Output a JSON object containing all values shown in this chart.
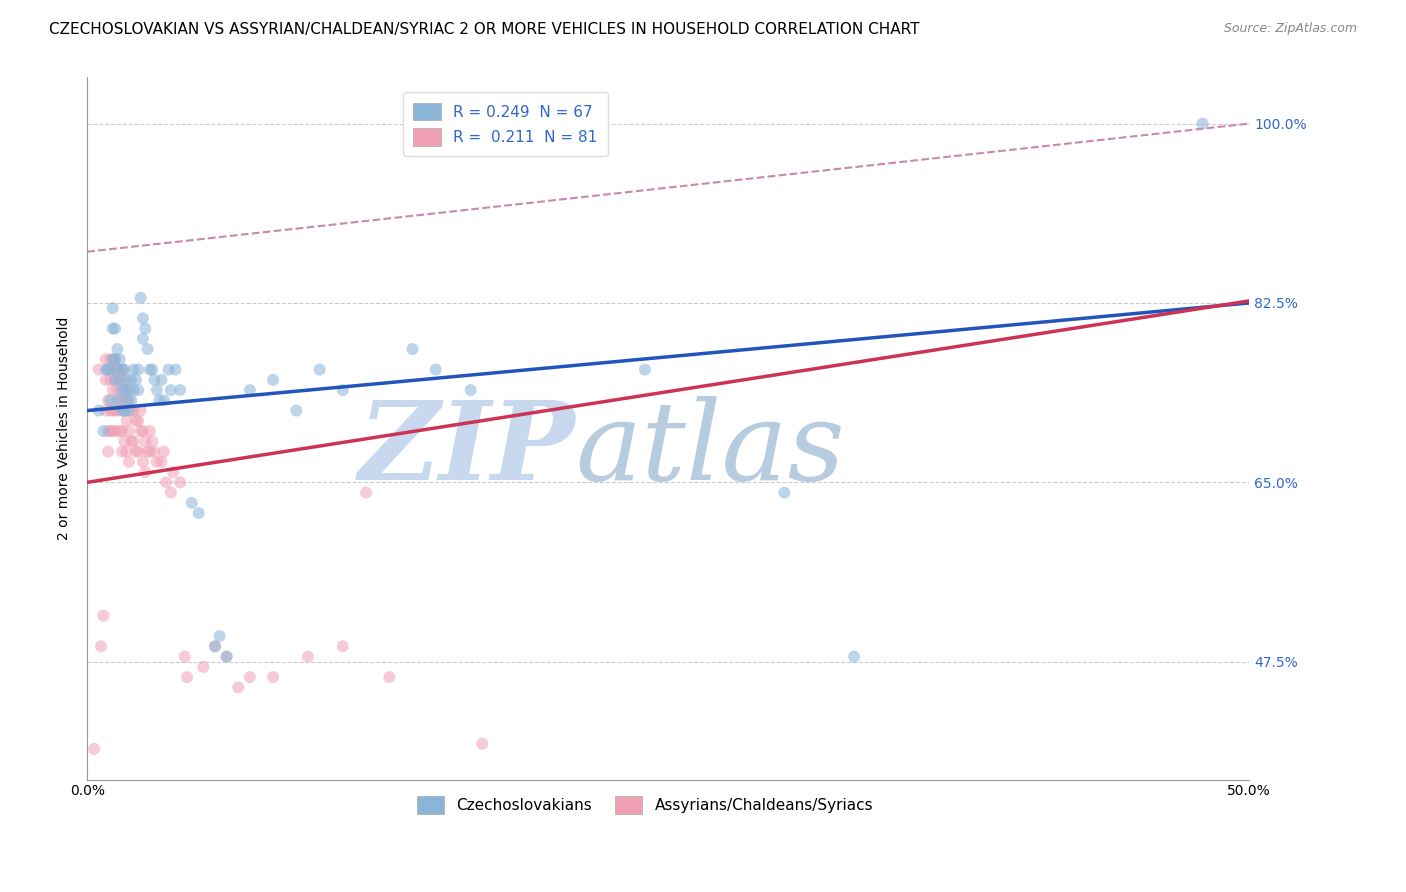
{
  "title": "CZECHOSLOVAKIAN VS ASSYRIAN/CHALDEAN/SYRIAC 2 OR MORE VEHICLES IN HOUSEHOLD CORRELATION CHART",
  "source": "Source: ZipAtlas.com",
  "ylabel": "2 or more Vehicles in Household",
  "ytick_labels": [
    "47.5%",
    "65.0%",
    "82.5%",
    "100.0%"
  ],
  "ytick_values": [
    0.475,
    0.65,
    0.825,
    1.0
  ],
  "xlim": [
    0.0,
    0.5
  ],
  "ylim": [
    0.36,
    1.045
  ],
  "watermark_zip": "ZIP",
  "watermark_atlas": "atlas",
  "legend_entry1": "R = 0.249  N = 67",
  "legend_entry2": "R =  0.211  N = 81",
  "legend_label1": "Czechoslovakians",
  "legend_label2": "Assyrians/Chaldeans/Syriacs",
  "blue_scatter": [
    [
      0.005,
      0.72
    ],
    [
      0.007,
      0.7
    ],
    [
      0.008,
      0.76
    ],
    [
      0.009,
      0.76
    ],
    [
      0.01,
      0.73
    ],
    [
      0.01,
      0.76
    ],
    [
      0.011,
      0.8
    ],
    [
      0.011,
      0.82
    ],
    [
      0.011,
      0.77
    ],
    [
      0.012,
      0.75
    ],
    [
      0.012,
      0.8
    ],
    [
      0.012,
      0.77
    ],
    [
      0.013,
      0.78
    ],
    [
      0.013,
      0.76
    ],
    [
      0.013,
      0.73
    ],
    [
      0.014,
      0.77
    ],
    [
      0.014,
      0.75
    ],
    [
      0.015,
      0.76
    ],
    [
      0.015,
      0.74
    ],
    [
      0.015,
      0.72
    ],
    [
      0.016,
      0.76
    ],
    [
      0.016,
      0.74
    ],
    [
      0.016,
      0.72
    ],
    [
      0.017,
      0.75
    ],
    [
      0.017,
      0.73
    ],
    [
      0.018,
      0.74
    ],
    [
      0.018,
      0.72
    ],
    [
      0.019,
      0.75
    ],
    [
      0.019,
      0.73
    ],
    [
      0.02,
      0.76
    ],
    [
      0.02,
      0.74
    ],
    [
      0.021,
      0.75
    ],
    [
      0.022,
      0.76
    ],
    [
      0.022,
      0.74
    ],
    [
      0.023,
      0.83
    ],
    [
      0.024,
      0.81
    ],
    [
      0.024,
      0.79
    ],
    [
      0.025,
      0.8
    ],
    [
      0.026,
      0.78
    ],
    [
      0.027,
      0.76
    ],
    [
      0.028,
      0.76
    ],
    [
      0.029,
      0.75
    ],
    [
      0.03,
      0.74
    ],
    [
      0.031,
      0.73
    ],
    [
      0.032,
      0.75
    ],
    [
      0.033,
      0.73
    ],
    [
      0.035,
      0.76
    ],
    [
      0.036,
      0.74
    ],
    [
      0.038,
      0.76
    ],
    [
      0.04,
      0.74
    ],
    [
      0.045,
      0.63
    ],
    [
      0.048,
      0.62
    ],
    [
      0.055,
      0.49
    ],
    [
      0.057,
      0.5
    ],
    [
      0.06,
      0.48
    ],
    [
      0.07,
      0.74
    ],
    [
      0.08,
      0.75
    ],
    [
      0.09,
      0.72
    ],
    [
      0.1,
      0.76
    ],
    [
      0.11,
      0.74
    ],
    [
      0.14,
      0.78
    ],
    [
      0.15,
      0.76
    ],
    [
      0.165,
      0.74
    ],
    [
      0.24,
      0.76
    ],
    [
      0.3,
      0.64
    ],
    [
      0.33,
      0.48
    ],
    [
      0.48,
      1.0
    ]
  ],
  "pink_scatter": [
    [
      0.003,
      0.39
    ],
    [
      0.005,
      0.76
    ],
    [
      0.006,
      0.49
    ],
    [
      0.007,
      0.52
    ],
    [
      0.008,
      0.77
    ],
    [
      0.008,
      0.75
    ],
    [
      0.008,
      0.72
    ],
    [
      0.009,
      0.76
    ],
    [
      0.009,
      0.73
    ],
    [
      0.009,
      0.7
    ],
    [
      0.009,
      0.68
    ],
    [
      0.01,
      0.77
    ],
    [
      0.01,
      0.75
    ],
    [
      0.01,
      0.72
    ],
    [
      0.01,
      0.7
    ],
    [
      0.011,
      0.76
    ],
    [
      0.011,
      0.74
    ],
    [
      0.011,
      0.72
    ],
    [
      0.011,
      0.7
    ],
    [
      0.012,
      0.77
    ],
    [
      0.012,
      0.75
    ],
    [
      0.012,
      0.72
    ],
    [
      0.012,
      0.7
    ],
    [
      0.013,
      0.76
    ],
    [
      0.013,
      0.74
    ],
    [
      0.013,
      0.72
    ],
    [
      0.014,
      0.75
    ],
    [
      0.014,
      0.73
    ],
    [
      0.014,
      0.7
    ],
    [
      0.015,
      0.76
    ],
    [
      0.015,
      0.73
    ],
    [
      0.015,
      0.7
    ],
    [
      0.015,
      0.68
    ],
    [
      0.016,
      0.75
    ],
    [
      0.016,
      0.72
    ],
    [
      0.016,
      0.69
    ],
    [
      0.017,
      0.74
    ],
    [
      0.017,
      0.71
    ],
    [
      0.017,
      0.68
    ],
    [
      0.018,
      0.73
    ],
    [
      0.018,
      0.7
    ],
    [
      0.018,
      0.67
    ],
    [
      0.019,
      0.72
    ],
    [
      0.019,
      0.69
    ],
    [
      0.02,
      0.72
    ],
    [
      0.02,
      0.69
    ],
    [
      0.021,
      0.71
    ],
    [
      0.021,
      0.68
    ],
    [
      0.022,
      0.71
    ],
    [
      0.022,
      0.68
    ],
    [
      0.023,
      0.72
    ],
    [
      0.023,
      0.7
    ],
    [
      0.024,
      0.7
    ],
    [
      0.024,
      0.67
    ],
    [
      0.025,
      0.69
    ],
    [
      0.025,
      0.66
    ],
    [
      0.026,
      0.68
    ],
    [
      0.027,
      0.7
    ],
    [
      0.027,
      0.68
    ],
    [
      0.028,
      0.69
    ],
    [
      0.029,
      0.68
    ],
    [
      0.03,
      0.67
    ],
    [
      0.032,
      0.67
    ],
    [
      0.033,
      0.68
    ],
    [
      0.034,
      0.65
    ],
    [
      0.036,
      0.64
    ],
    [
      0.037,
      0.66
    ],
    [
      0.04,
      0.65
    ],
    [
      0.042,
      0.48
    ],
    [
      0.043,
      0.46
    ],
    [
      0.05,
      0.47
    ],
    [
      0.055,
      0.49
    ],
    [
      0.06,
      0.48
    ],
    [
      0.065,
      0.45
    ],
    [
      0.07,
      0.46
    ],
    [
      0.08,
      0.46
    ],
    [
      0.095,
      0.48
    ],
    [
      0.11,
      0.49
    ],
    [
      0.12,
      0.64
    ],
    [
      0.13,
      0.46
    ],
    [
      0.17,
      0.395
    ]
  ],
  "blue_line": {
    "x0": 0.0,
    "y0": 0.72,
    "x1": 0.5,
    "y1": 0.825
  },
  "pink_line": {
    "x0": 0.0,
    "y0": 0.65,
    "x1": 0.5,
    "y1": 0.827
  },
  "dashed_line": {
    "x0": 0.0,
    "y0": 0.875,
    "x1": 0.5,
    "y1": 1.0
  },
  "scatter_size": 75,
  "scatter_alpha": 0.55,
  "blue_color": "#8ab4d8",
  "pink_color": "#f0a0b5",
  "blue_line_color": "#2255bb",
  "pink_line_color": "#cc3355",
  "dashed_line_color": "#cc88aa",
  "grid_color": "#cccccc",
  "title_fontsize": 11,
  "axis_label_fontsize": 10,
  "tick_fontsize": 10,
  "legend_fontsize": 11,
  "right_tick_color": "#3366cc",
  "watermark_zip_color": "#c8d8ee",
  "watermark_atlas_color": "#b8cce0"
}
